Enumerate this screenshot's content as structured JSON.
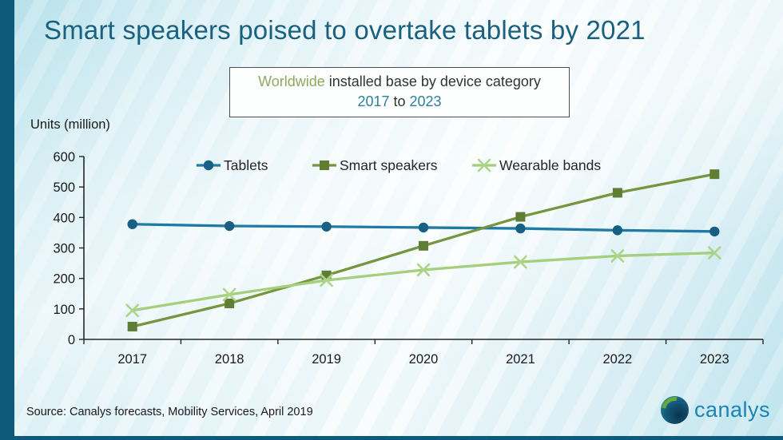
{
  "slide": {
    "title": "Smart speakers poised to overtake tablets by 2021",
    "subtitle": {
      "line1_highlight": "Worldwide",
      "line1_rest": " installed base by device category",
      "line2_start": "2017",
      "line2_mid": " to ",
      "line2_end": "2023"
    },
    "units_label": "Units (million)",
    "source": "Source: Canalys forecasts, Mobility Services, April 2019",
    "logo_text": "canalys"
  },
  "colors": {
    "accent_bar": "#0e5a7c",
    "title": "#1a607f",
    "subtitle_highlight": "#8fa860",
    "subtitle_years": "#2d7f9a",
    "axis": "#262626",
    "logo_text": "#1b84b5"
  },
  "chart_data": {
    "type": "line",
    "title": "Smart speakers poised to overtake tablets by 2021",
    "subtitle": "Worldwide installed base by device category 2017 to 2023",
    "xlabel": "",
    "ylabel": "Units (million)",
    "categories": [
      "2017",
      "2018",
      "2019",
      "2020",
      "2021",
      "2022",
      "2023"
    ],
    "series": [
      {
        "name": "Tablets",
        "values": [
          378,
          372,
          370,
          367,
          364,
          358,
          354
        ],
        "color": "#1f7aa6",
        "marker": "circle",
        "marker_color": "#175f83"
      },
      {
        "name": "Smart speakers",
        "values": [
          42,
          118,
          210,
          307,
          402,
          481,
          542
        ],
        "color": "#75953f",
        "marker": "square",
        "marker_color": "#5f7d33"
      },
      {
        "name": "Wearable bands",
        "values": [
          95,
          147,
          194,
          228,
          254,
          274,
          284
        ],
        "color": "#a5cf7d",
        "marker": "x",
        "marker_color": "#aed489"
      }
    ],
    "ylim": [
      0,
      600
    ],
    "ytick_step": 100,
    "grid": false,
    "legend_position": "top"
  }
}
